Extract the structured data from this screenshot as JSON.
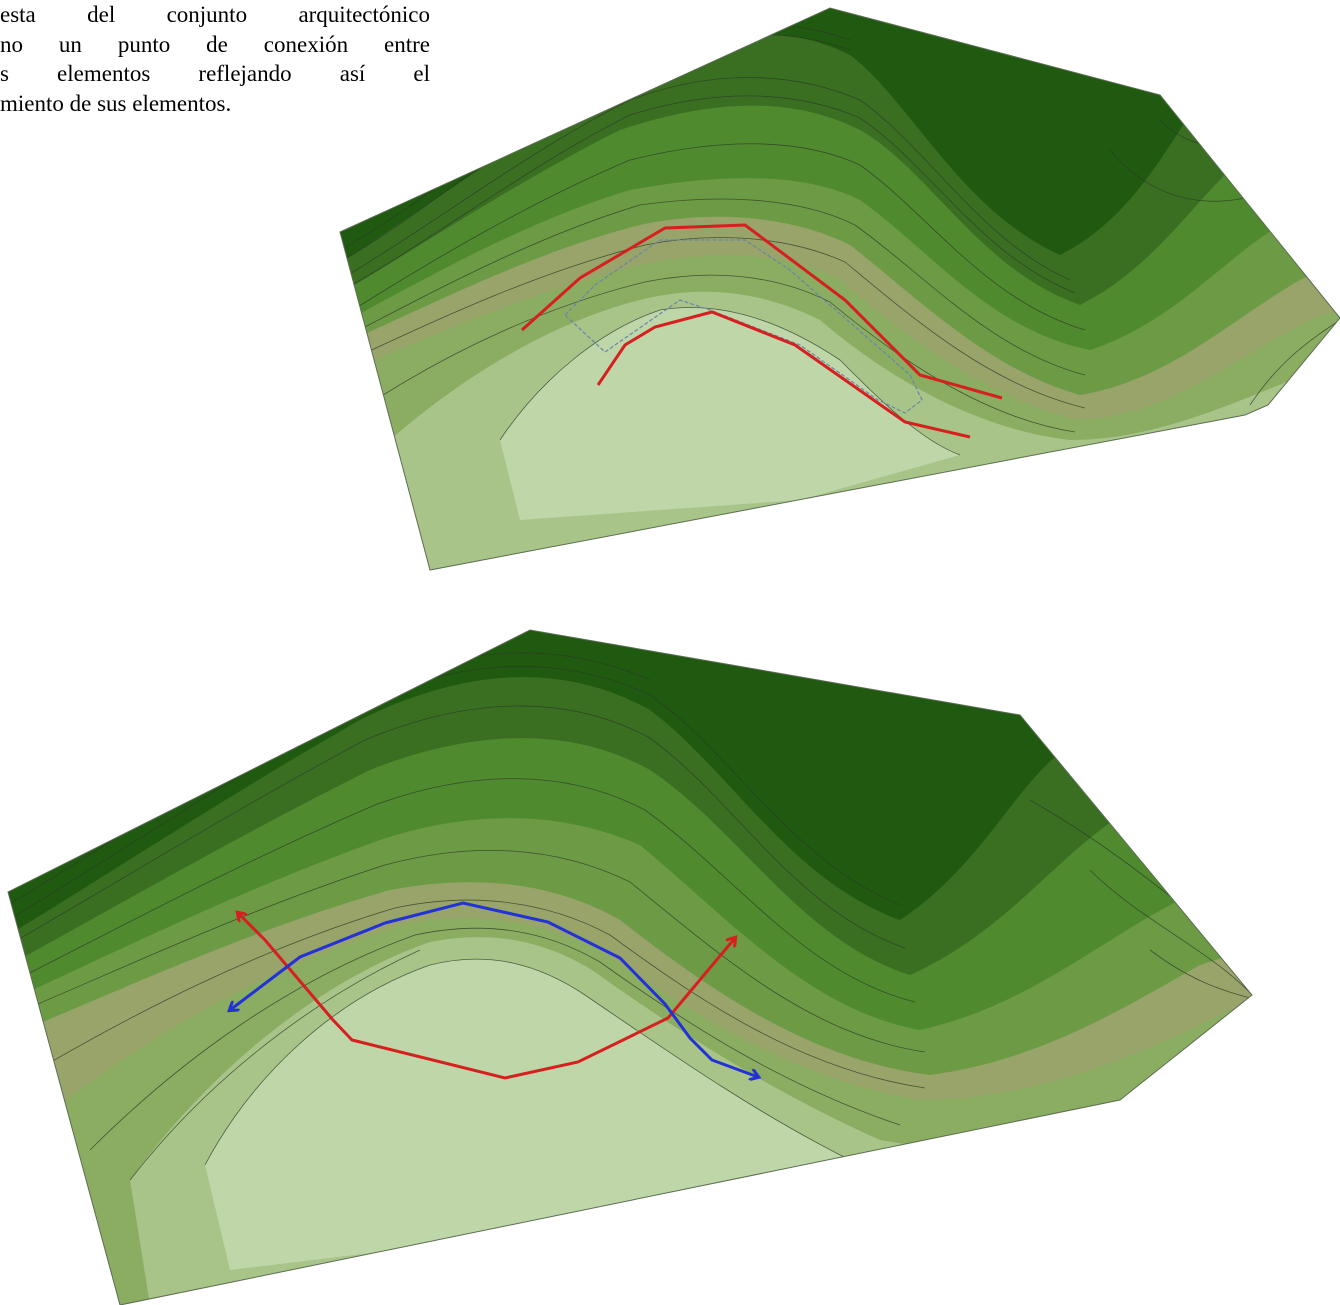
{
  "text": {
    "lines": [
      "esta del conjunto arquitectónico",
      "no un punto de conexión entre",
      "s elementos reflejando así el",
      "miento de sus elementos."
    ]
  },
  "colors": {
    "band_darkest": "#1f5a10",
    "band_dark": "#3a6f22",
    "band_mid": "#4f8a2e",
    "band_midlight": "#6d9a44",
    "band_light": "#8aad62",
    "band_olive": "#98a46a",
    "band_pale": "#a8c488",
    "band_palest": "#bfd6a8",
    "contour_line": "#2c3a26",
    "red_path": "#d62020",
    "blue_path": "#2232d6",
    "slab_outline": "#6a86a6",
    "background": "#ffffff"
  },
  "figures": [
    {
      "name": "top-terrain",
      "annotations": [
        "red-path-upper",
        "red-path-lower",
        "slab-outline"
      ]
    },
    {
      "name": "bottom-terrain",
      "annotations": [
        "red-arrow-path",
        "blue-arrow-path"
      ]
    }
  ]
}
